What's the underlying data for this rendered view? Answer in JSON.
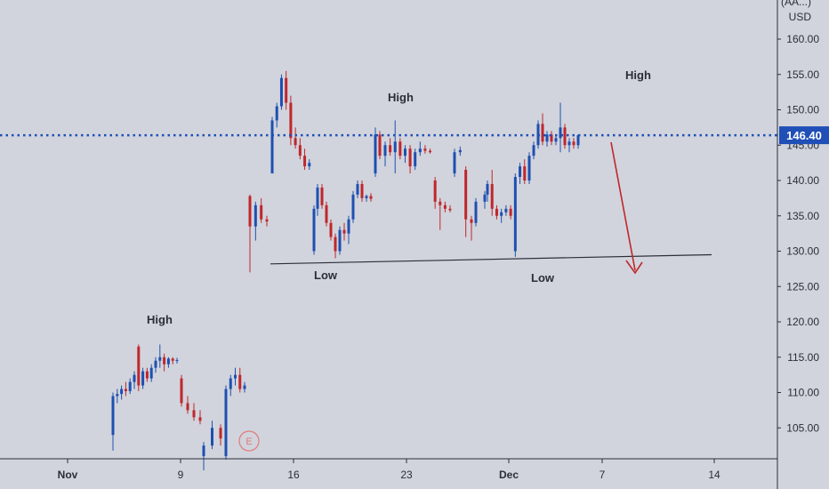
{
  "colors": {
    "background": "#d1d4dc",
    "up": "#1e4fb0",
    "down": "#c0262c",
    "price_line": "#1f4fb7",
    "trend_line": "#2a2e39",
    "arrow": "#c0262c",
    "axis_text": "#2a2e39",
    "price_tag_bg": "#1f4fb7"
  },
  "chart_data": {
    "type": "candlestick",
    "y_axis": {
      "currency_top": "(AA...)",
      "currency": "USD",
      "ticks": [
        "160.00",
        "155.00",
        "150.00",
        "145.00",
        "140.00",
        "135.00",
        "130.00",
        "125.00",
        "120.00",
        "115.00",
        "110.00",
        "105.00"
      ],
      "range": [
        100.8,
        165.5
      ]
    },
    "x_axis": {
      "ticks": [
        "Nov",
        "9",
        "16",
        "23",
        "Dec",
        "7",
        "14"
      ]
    },
    "current_price": "146.40",
    "annotations": [
      "High",
      "High",
      "High",
      "Low",
      "Low"
    ],
    "event_marker": "E",
    "trend_line": {
      "from": 128.2,
      "to": 129.5
    },
    "series": [
      {
        "o": 104,
        "h": 110,
        "l": 101.8,
        "c": 109.5
      },
      {
        "o": 109.5,
        "h": 110.5,
        "l": 108.5,
        "c": 109.8
      },
      {
        "o": 109.8,
        "h": 111,
        "l": 109,
        "c": 110.5
      },
      {
        "o": 110.5,
        "h": 111.5,
        "l": 109.5,
        "c": 110.2
      },
      {
        "o": 110.2,
        "h": 112,
        "l": 109.8,
        "c": 111.5
      },
      {
        "o": 111.5,
        "h": 113,
        "l": 110.5,
        "c": 112.5
      },
      {
        "o": 116.5,
        "h": 116.8,
        "l": 110.2,
        "c": 111
      },
      {
        "o": 111,
        "h": 113.5,
        "l": 110.5,
        "c": 113
      },
      {
        "o": 113,
        "h": 113.5,
        "l": 111.5,
        "c": 112
      },
      {
        "o": 112,
        "h": 114,
        "l": 111.5,
        "c": 113.5
      },
      {
        "o": 113.5,
        "h": 115,
        "l": 112.8,
        "c": 114.5
      },
      {
        "o": 114.5,
        "h": 116.8,
        "l": 113.5,
        "c": 115
      },
      {
        "o": 115,
        "h": 115.5,
        "l": 113,
        "c": 114
      },
      {
        "o": 114,
        "h": 115,
        "l": 113.5,
        "c": 114.8
      },
      {
        "o": 114.8,
        "h": 115,
        "l": 114,
        "c": 114.5
      },
      {
        "o": 114.5,
        "h": 114.9,
        "l": 114.1,
        "c": 114.6
      },
      {
        "o": 112,
        "h": 112.5,
        "l": 108,
        "c": 108.5
      },
      {
        "o": 108.5,
        "h": 109.5,
        "l": 107,
        "c": 107.5
      },
      {
        "o": 107.5,
        "h": 108.5,
        "l": 106,
        "c": 106.5
      },
      {
        "o": 106.5,
        "h": 107.5,
        "l": 105.5,
        "c": 106
      },
      {
        "o": 101,
        "h": 103,
        "l": 99,
        "c": 102.5
      },
      {
        "o": 102.5,
        "h": 106,
        "l": 102,
        "c": 105
      },
      {
        "o": 105,
        "h": 105.5,
        "l": 102.5,
        "c": 103.5
      },
      {
        "o": 101,
        "h": 111,
        "l": 100.5,
        "c": 110.5
      },
      {
        "o": 110.5,
        "h": 112.5,
        "l": 109.5,
        "c": 112
      },
      {
        "o": 112,
        "h": 113.5,
        "l": 111,
        "c": 112.5
      },
      {
        "o": 112.5,
        "h": 113.5,
        "l": 110,
        "c": 110.5
      },
      {
        "o": 110.5,
        "h": 111.5,
        "l": 110,
        "c": 111
      },
      {
        "o": 137.8,
        "h": 138,
        "l": 127,
        "c": 133.5
      },
      {
        "o": 133.5,
        "h": 137,
        "l": 131.5,
        "c": 136.5
      },
      {
        "o": 136.5,
        "h": 137.5,
        "l": 134,
        "c": 134.5
      },
      {
        "o": 134.5,
        "h": 135,
        "l": 133.5,
        "c": 134.2
      },
      {
        "o": 141,
        "h": 149,
        "l": 141,
        "c": 148.5
      },
      {
        "o": 148.5,
        "h": 151,
        "l": 147.5,
        "c": 150.5
      },
      {
        "o": 150.5,
        "h": 155,
        "l": 150,
        "c": 154.5
      },
      {
        "o": 154.5,
        "h": 155.5,
        "l": 150,
        "c": 151
      },
      {
        "o": 151,
        "h": 152,
        "l": 145,
        "c": 146
      },
      {
        "o": 146,
        "h": 147.5,
        "l": 144.5,
        "c": 145
      },
      {
        "o": 145,
        "h": 146,
        "l": 143,
        "c": 143.5
      },
      {
        "o": 143.5,
        "h": 144.5,
        "l": 141.5,
        "c": 142
      },
      {
        "o": 142,
        "h": 143,
        "l": 141.5,
        "c": 142.5
      },
      {
        "o": 130,
        "h": 136.5,
        "l": 129.5,
        "c": 136
      },
      {
        "o": 136,
        "h": 139.5,
        "l": 135,
        "c": 139
      },
      {
        "o": 139,
        "h": 139.5,
        "l": 136,
        "c": 136.5
      },
      {
        "o": 136.5,
        "h": 137,
        "l": 133.5,
        "c": 134
      },
      {
        "o": 134,
        "h": 134.5,
        "l": 131.5,
        "c": 132
      },
      {
        "o": 132,
        "h": 132.5,
        "l": 129,
        "c": 130
      },
      {
        "o": 130,
        "h": 133.5,
        "l": 129.5,
        "c": 133
      },
      {
        "o": 133,
        "h": 134,
        "l": 131.5,
        "c": 132.5
      },
      {
        "o": 132.5,
        "h": 135,
        "l": 131,
        "c": 134.5
      },
      {
        "o": 134.5,
        "h": 138.5,
        "l": 134,
        "c": 138
      },
      {
        "o": 138,
        "h": 140,
        "l": 137.5,
        "c": 139.5
      },
      {
        "o": 139.5,
        "h": 140,
        "l": 137,
        "c": 137.5
      },
      {
        "o": 137.5,
        "h": 138,
        "l": 137,
        "c": 137.8
      },
      {
        "o": 137.8,
        "h": 138.2,
        "l": 137,
        "c": 137.4
      },
      {
        "o": 141,
        "h": 147.5,
        "l": 140.5,
        "c": 146.5
      },
      {
        "o": 146.5,
        "h": 147,
        "l": 143,
        "c": 143.5
      },
      {
        "o": 143.5,
        "h": 145.5,
        "l": 142,
        "c": 145
      },
      {
        "o": 145,
        "h": 146,
        "l": 143.5,
        "c": 144
      },
      {
        "o": 144,
        "h": 148.5,
        "l": 141,
        "c": 145.5
      },
      {
        "o": 145.5,
        "h": 146,
        "l": 143,
        "c": 143.5
      },
      {
        "o": 143.5,
        "h": 145,
        "l": 142.5,
        "c": 144.5
      },
      {
        "o": 144.5,
        "h": 145,
        "l": 141,
        "c": 142
      },
      {
        "o": 142,
        "h": 144.5,
        "l": 141.5,
        "c": 144
      },
      {
        "o": 144,
        "h": 145.5,
        "l": 143.5,
        "c": 144.5
      },
      {
        "o": 144.5,
        "h": 145,
        "l": 143.8,
        "c": 144.2
      },
      {
        "o": 144.2,
        "h": 144.5,
        "l": 143.8,
        "c": 144
      },
      {
        "o": 140,
        "h": 140.5,
        "l": 136,
        "c": 137
      },
      {
        "o": 137,
        "h": 137.5,
        "l": 133,
        "c": 136.5
      },
      {
        "o": 136.5,
        "h": 137,
        "l": 135.5,
        "c": 136
      },
      {
        "o": 136,
        "h": 136.5,
        "l": 135.5,
        "c": 135.8
      },
      {
        "o": 141,
        "h": 144.5,
        "l": 140.5,
        "c": 144
      },
      {
        "o": 144,
        "h": 144.8,
        "l": 143.5,
        "c": 144.3
      },
      {
        "o": 141.5,
        "h": 142,
        "l": 132,
        "c": 134.5
      },
      {
        "o": 134.5,
        "h": 135,
        "l": 131.5,
        "c": 134
      },
      {
        "o": 134,
        "h": 137.5,
        "l": 133.5,
        "c": 137
      },
      {
        "o": 137,
        "h": 138.5,
        "l": 136,
        "c": 138
      },
      {
        "o": 138,
        "h": 140,
        "l": 137,
        "c": 139.5
      },
      {
        "o": 139.5,
        "h": 141.5,
        "l": 135,
        "c": 136
      },
      {
        "o": 136,
        "h": 136.5,
        "l": 134.5,
        "c": 135
      },
      {
        "o": 135,
        "h": 136,
        "l": 134,
        "c": 135.5
      },
      {
        "o": 135.5,
        "h": 136.5,
        "l": 135,
        "c": 136
      },
      {
        "o": 136,
        "h": 136.5,
        "l": 134.5,
        "c": 135
      },
      {
        "o": 130,
        "h": 141,
        "l": 129.2,
        "c": 140.5
      },
      {
        "o": 140.5,
        "h": 142.5,
        "l": 139.5,
        "c": 142
      },
      {
        "o": 142,
        "h": 143,
        "l": 139.5,
        "c": 140
      },
      {
        "o": 140,
        "h": 144,
        "l": 139.5,
        "c": 143.5
      },
      {
        "o": 143.5,
        "h": 145.5,
        "l": 143,
        "c": 145
      },
      {
        "o": 145,
        "h": 148.5,
        "l": 144.5,
        "c": 148
      },
      {
        "o": 148,
        "h": 149.5,
        "l": 145,
        "c": 145.5
      },
      {
        "o": 145.5,
        "h": 147,
        "l": 144.8,
        "c": 146.5
      },
      {
        "o": 146.5,
        "h": 147,
        "l": 145,
        "c": 145.5
      },
      {
        "o": 145.5,
        "h": 146.5,
        "l": 145,
        "c": 146
      },
      {
        "o": 146,
        "h": 151,
        "l": 144,
        "c": 147.5
      },
      {
        "o": 147.5,
        "h": 148,
        "l": 144.5,
        "c": 145
      },
      {
        "o": 145,
        "h": 146,
        "l": 144,
        "c": 145.5
      },
      {
        "o": 145.5,
        "h": 146,
        "l": 144.5,
        "c": 145
      },
      {
        "o": 145,
        "h": 146.5,
        "l": 144.5,
        "c": 146.4
      }
    ]
  }
}
